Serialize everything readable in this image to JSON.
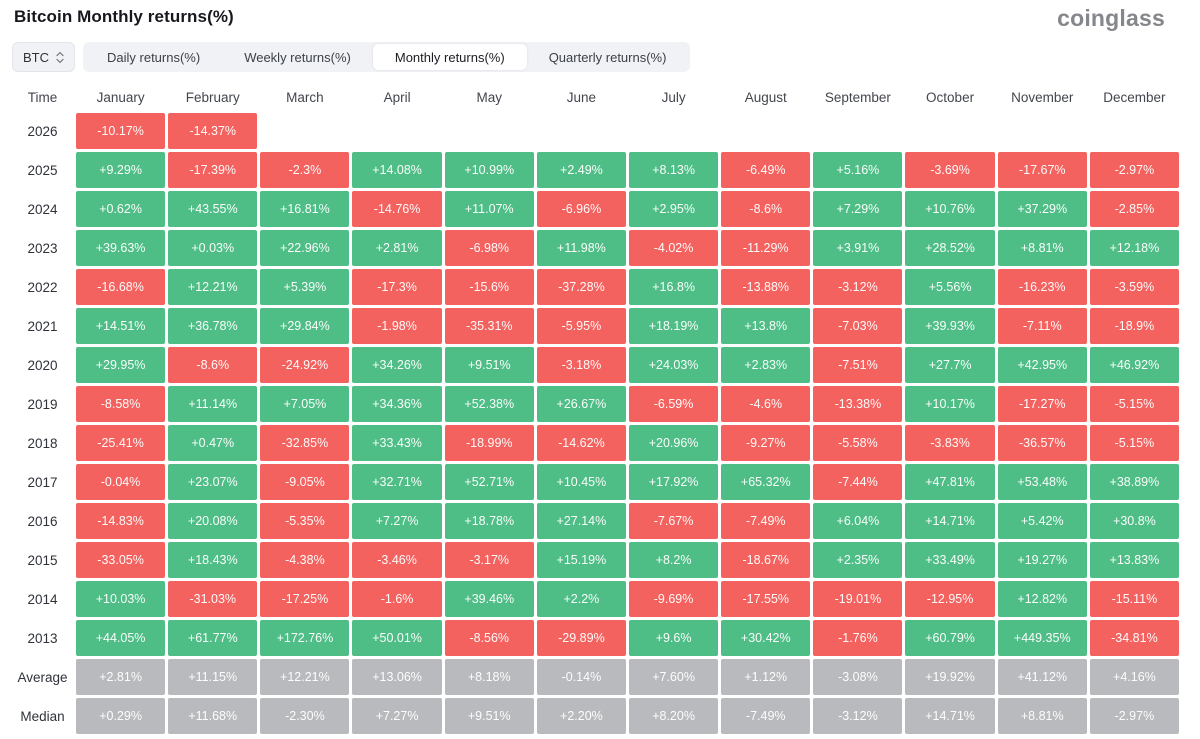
{
  "page": {
    "title": "Bitcoin Monthly returns(%)",
    "brand": "coinglass"
  },
  "controls": {
    "symbol_select": {
      "value": "BTC"
    },
    "tabs": [
      {
        "label": "Daily returns(%)",
        "active": false
      },
      {
        "label": "Weekly returns(%)",
        "active": false
      },
      {
        "label": "Monthly returns(%)",
        "active": true
      },
      {
        "label": "Quarterly returns(%)",
        "active": false
      }
    ]
  },
  "colors": {
    "positive": "#4EBE86",
    "negative": "#F3625F",
    "neutral": "#B9BABD"
  },
  "table": {
    "time_header": "Time",
    "months": [
      "January",
      "February",
      "March",
      "April",
      "May",
      "June",
      "July",
      "August",
      "September",
      "October",
      "November",
      "December"
    ],
    "rows": [
      {
        "time": "2026",
        "kind": "year",
        "values": [
          "-10.17%",
          "-14.37%",
          "",
          "",
          "",
          "",
          "",
          "",
          "",
          "",
          "",
          ""
        ]
      },
      {
        "time": "2025",
        "kind": "year",
        "values": [
          "+9.29%",
          "-17.39%",
          "-2.3%",
          "+14.08%",
          "+10.99%",
          "+2.49%",
          "+8.13%",
          "-6.49%",
          "+5.16%",
          "-3.69%",
          "-17.67%",
          "-2.97%"
        ]
      },
      {
        "time": "2024",
        "kind": "year",
        "values": [
          "+0.62%",
          "+43.55%",
          "+16.81%",
          "-14.76%",
          "+11.07%",
          "-6.96%",
          "+2.95%",
          "-8.6%",
          "+7.29%",
          "+10.76%",
          "+37.29%",
          "-2.85%"
        ]
      },
      {
        "time": "2023",
        "kind": "year",
        "values": [
          "+39.63%",
          "+0.03%",
          "+22.96%",
          "+2.81%",
          "-6.98%",
          "+11.98%",
          "-4.02%",
          "-11.29%",
          "+3.91%",
          "+28.52%",
          "+8.81%",
          "+12.18%"
        ]
      },
      {
        "time": "2022",
        "kind": "year",
        "values": [
          "-16.68%",
          "+12.21%",
          "+5.39%",
          "-17.3%",
          "-15.6%",
          "-37.28%",
          "+16.8%",
          "-13.88%",
          "-3.12%",
          "+5.56%",
          "-16.23%",
          "-3.59%"
        ]
      },
      {
        "time": "2021",
        "kind": "year",
        "values": [
          "+14.51%",
          "+36.78%",
          "+29.84%",
          "-1.98%",
          "-35.31%",
          "-5.95%",
          "+18.19%",
          "+13.8%",
          "-7.03%",
          "+39.93%",
          "-7.11%",
          "-18.9%"
        ]
      },
      {
        "time": "2020",
        "kind": "year",
        "values": [
          "+29.95%",
          "-8.6%",
          "-24.92%",
          "+34.26%",
          "+9.51%",
          "-3.18%",
          "+24.03%",
          "+2.83%",
          "-7.51%",
          "+27.7%",
          "+42.95%",
          "+46.92%"
        ]
      },
      {
        "time": "2019",
        "kind": "year",
        "values": [
          "-8.58%",
          "+11.14%",
          "+7.05%",
          "+34.36%",
          "+52.38%",
          "+26.67%",
          "-6.59%",
          "-4.6%",
          "-13.38%",
          "+10.17%",
          "-17.27%",
          "-5.15%"
        ]
      },
      {
        "time": "2018",
        "kind": "year",
        "values": [
          "-25.41%",
          "+0.47%",
          "-32.85%",
          "+33.43%",
          "-18.99%",
          "-14.62%",
          "+20.96%",
          "-9.27%",
          "-5.58%",
          "-3.83%",
          "-36.57%",
          "-5.15%"
        ]
      },
      {
        "time": "2017",
        "kind": "year",
        "values": [
          "-0.04%",
          "+23.07%",
          "-9.05%",
          "+32.71%",
          "+52.71%",
          "+10.45%",
          "+17.92%",
          "+65.32%",
          "-7.44%",
          "+47.81%",
          "+53.48%",
          "+38.89%"
        ]
      },
      {
        "time": "2016",
        "kind": "year",
        "values": [
          "-14.83%",
          "+20.08%",
          "-5.35%",
          "+7.27%",
          "+18.78%",
          "+27.14%",
          "-7.67%",
          "-7.49%",
          "+6.04%",
          "+14.71%",
          "+5.42%",
          "+30.8%"
        ]
      },
      {
        "time": "2015",
        "kind": "year",
        "values": [
          "-33.05%",
          "+18.43%",
          "-4.38%",
          "-3.46%",
          "-3.17%",
          "+15.19%",
          "+8.2%",
          "-18.67%",
          "+2.35%",
          "+33.49%",
          "+19.27%",
          "+13.83%"
        ]
      },
      {
        "time": "2014",
        "kind": "year",
        "values": [
          "+10.03%",
          "-31.03%",
          "-17.25%",
          "-1.6%",
          "+39.46%",
          "+2.2%",
          "-9.69%",
          "-17.55%",
          "-19.01%",
          "-12.95%",
          "+12.82%",
          "-15.11%"
        ]
      },
      {
        "time": "2013",
        "kind": "year",
        "values": [
          "+44.05%",
          "+61.77%",
          "+172.76%",
          "+50.01%",
          "-8.56%",
          "-29.89%",
          "+9.6%",
          "+30.42%",
          "-1.76%",
          "+60.79%",
          "+449.35%",
          "-34.81%"
        ]
      },
      {
        "time": "Average",
        "kind": "summary",
        "values": [
          "+2.81%",
          "+11.15%",
          "+12.21%",
          "+13.06%",
          "+8.18%",
          "-0.14%",
          "+7.60%",
          "+1.12%",
          "-3.08%",
          "+19.92%",
          "+41.12%",
          "+4.16%"
        ]
      },
      {
        "time": "Median",
        "kind": "summary",
        "values": [
          "+0.29%",
          "+11.68%",
          "-2.30%",
          "+7.27%",
          "+9.51%",
          "+2.20%",
          "+8.20%",
          "-7.49%",
          "-3.12%",
          "+14.71%",
          "+8.81%",
          "-2.97%"
        ]
      }
    ]
  }
}
